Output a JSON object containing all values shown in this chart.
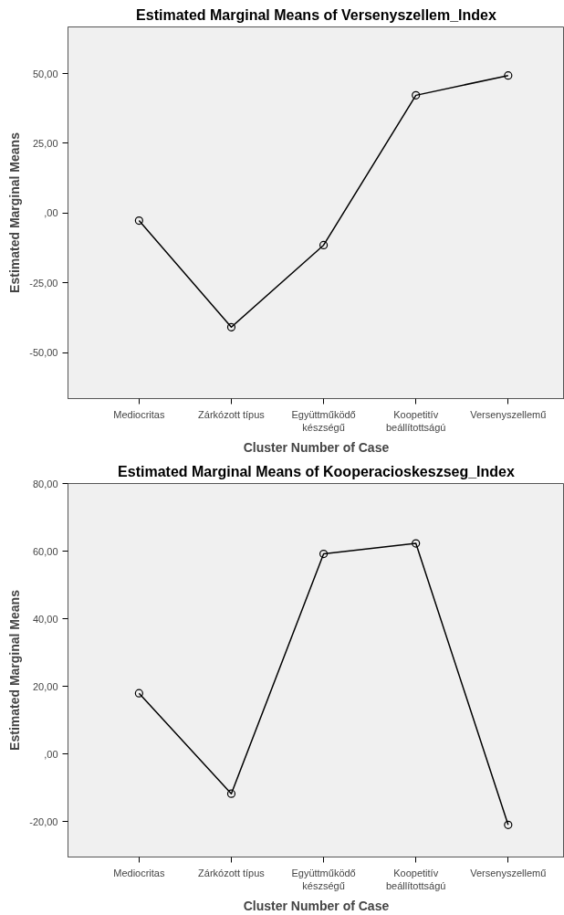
{
  "chart_data": [
    {
      "type": "line",
      "title": "Estimated Marginal Means of Versenyszellem_Index",
      "xlabel": "Cluster Number of Case",
      "ylabel": "Estimated Marginal Means",
      "categories": [
        "Mediocritas",
        "Zárkózott típus",
        "Együttműködő\nkészségű",
        "Koopetitív\nbeállítottságú",
        "Versenyszellemű"
      ],
      "series": [
        {
          "color": "#000000",
          "values": [
            -2.7,
            -40.9,
            -11.5,
            42.2,
            49.3
          ]
        }
      ],
      "ylim": [
        -66.5,
        66.7
      ],
      "yticks": [
        {
          "value": -50,
          "label": "-50,00"
        },
        {
          "value": -25,
          "label": "-25,00"
        },
        {
          "value": 0,
          "label": ",00"
        },
        {
          "value": 25,
          "label": "25,00"
        },
        {
          "value": 50,
          "label": "50,00"
        }
      ],
      "grid": false,
      "marker": "circle",
      "line_style": "solid"
    },
    {
      "type": "line",
      "title": "Estimated Marginal Means of Kooperacioskeszseg_Index",
      "xlabel": "Cluster Number of Case",
      "ylabel": "Estimated Marginal Means",
      "categories": [
        "Mediocritas",
        "Zárkózott típus",
        "Együttműködő\nkészségű",
        "Koopetitív\nbeállítottságú",
        "Versenyszellemű"
      ],
      "series": [
        {
          "color": "#000000",
          "values": [
            18.0,
            -11.7,
            59.2,
            62.3,
            -20.9
          ]
        }
      ],
      "ylim": [
        -30.4,
        80
      ],
      "yticks": [
        {
          "value": -20,
          "label": "-20,00"
        },
        {
          "value": 0,
          "label": ",00"
        },
        {
          "value": 20,
          "label": "20,00"
        },
        {
          "value": 40,
          "label": "40,00"
        },
        {
          "value": 60,
          "label": "60,00"
        },
        {
          "value": 80,
          "label": "80,00"
        }
      ],
      "grid": false,
      "marker": "circle",
      "line_style": "solid"
    }
  ]
}
